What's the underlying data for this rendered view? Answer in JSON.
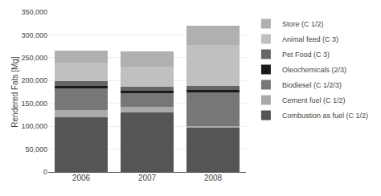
{
  "chart_data": {
    "type": "bar",
    "stacked": true,
    "ylabel": "Rendered Fats [Mg]",
    "categories": [
      "2006",
      "2007",
      "2008"
    ],
    "series": [
      {
        "name": "Combustion as fuel (C 1/2)",
        "color": "#555555",
        "values": [
          120000,
          130000,
          97000
        ]
      },
      {
        "name": "Cement fuel (C 1/2)",
        "color": "#aaaaaa",
        "values": [
          15000,
          13000,
          3000
        ]
      },
      {
        "name": "Biodiesel (C 1/2/3)",
        "color": "#777777",
        "values": [
          48000,
          30000,
          75000
        ]
      },
      {
        "name": "Oleochemicals (2/3)",
        "color": "#1a1a1a",
        "values": [
          5000,
          5000,
          5000
        ]
      },
      {
        "name": "Pet Food (C 3)",
        "color": "#666666",
        "values": [
          10000,
          8000,
          8000
        ]
      },
      {
        "name": "Animal feed (C 3)",
        "color": "#c0c0c0",
        "values": [
          42000,
          45000,
          90000
        ]
      },
      {
        "name": "Store (C 1/2)",
        "color": "#b0b0b0",
        "values": [
          25000,
          32000,
          42000
        ]
      }
    ],
    "ylim": [
      0,
      350000
    ],
    "yticks": [
      0,
      {
        "value": 50000,
        "label": "50,000"
      },
      {
        "value": 100000,
        "label": "100,000"
      },
      {
        "value": 150000,
        "label": "150,000"
      },
      {
        "value": 200000,
        "label": "200,000"
      },
      {
        "value": 250000,
        "label": "250,000"
      },
      {
        "value": 300000,
        "label": "300,000"
      },
      {
        "value": 350000,
        "label": "350,000"
      }
    ],
    "grid": true,
    "legend": "right"
  }
}
